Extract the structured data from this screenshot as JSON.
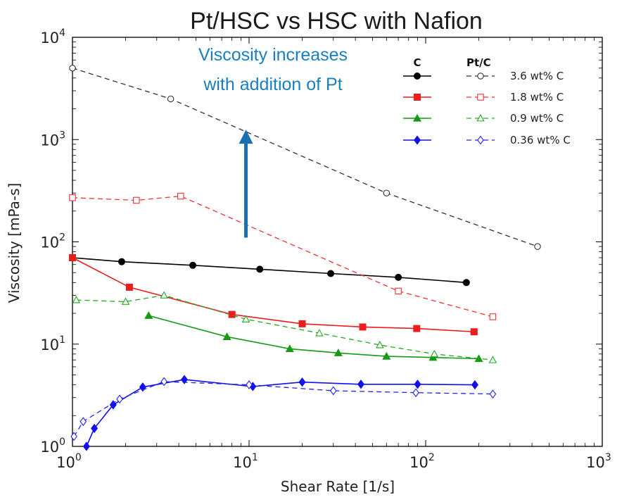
{
  "chart_data": {
    "type": "line",
    "title": "Pt/HSC vs HSC with Nafion",
    "xlabel": "Shear Rate [1/s]",
    "ylabel": "Viscosity [mPa-s]",
    "x_scale": "log",
    "y_scale": "log",
    "xlim": [
      1,
      1000
    ],
    "ylim": [
      1,
      10000
    ],
    "x_ticks": [
      {
        "value": 1,
        "base": "10",
        "exp": "0"
      },
      {
        "value": 10,
        "base": "10",
        "exp": "1"
      },
      {
        "value": 100,
        "base": "10",
        "exp": "2"
      },
      {
        "value": 1000,
        "base": "10",
        "exp": "3"
      }
    ],
    "y_ticks": [
      {
        "value": 1,
        "base": "10",
        "exp": "0"
      },
      {
        "value": 10,
        "base": "10",
        "exp": "1"
      },
      {
        "value": 100,
        "base": "10",
        "exp": "2"
      },
      {
        "value": 1000,
        "base": "10",
        "exp": "3"
      },
      {
        "value": 10000,
        "base": "10",
        "exp": "4"
      }
    ],
    "grid": false,
    "legend": {
      "placement": "top-right",
      "column_titles": [
        "C",
        "Pt/C"
      ],
      "labels": [
        "3.6 wt% C",
        "1.8 wt% C",
        "0.9 wt% C",
        "0.36 wt% C"
      ]
    },
    "series": [
      {
        "group": "C",
        "label_index": 0,
        "color": "#000000",
        "marker": "circle",
        "filled": true,
        "dashed": false,
        "x": [
          1.0,
          1.9,
          4.8,
          11.5,
          29,
          70,
          170
        ],
        "y": [
          70,
          64,
          59,
          54,
          49,
          45,
          40
        ]
      },
      {
        "group": "C",
        "label_index": 1,
        "color": "#ee1c1c",
        "marker": "square",
        "filled": true,
        "dashed": false,
        "x": [
          1.0,
          2.1,
          8,
          20,
          44,
          89,
          188
        ],
        "y": [
          70,
          36,
          19.5,
          15.8,
          14.7,
          14.2,
          13.2
        ]
      },
      {
        "group": "C",
        "label_index": 2,
        "color": "#159a15",
        "marker": "triangle",
        "filled": true,
        "dashed": false,
        "x": [
          2.7,
          7.5,
          17,
          32,
          60,
          110,
          200
        ],
        "y": [
          19,
          11.8,
          9,
          8.2,
          7.6,
          7.4,
          7.2
        ]
      },
      {
        "group": "C",
        "label_index": 3,
        "color": "#1010ee",
        "marker": "diamond",
        "filled": true,
        "dashed": false,
        "x": [
          1.2,
          1.33,
          1.7,
          2.5,
          4.3,
          10.5,
          20,
          43,
          90,
          190
        ],
        "y": [
          1,
          1.5,
          2.55,
          3.8,
          4.5,
          3.85,
          4.25,
          4.05,
          4.05,
          4.0
        ]
      },
      {
        "group": "Pt/C",
        "label_index": 0,
        "color": "#333333",
        "marker": "circle",
        "filled": false,
        "dashed": true,
        "x": [
          1.0,
          3.6,
          60,
          430
        ],
        "y": [
          5000,
          2500,
          300,
          90
        ]
      },
      {
        "group": "Pt/C",
        "label_index": 1,
        "color": "#ee3333",
        "marker": "square",
        "filled": false,
        "dashed": true,
        "x": [
          1.0,
          2.3,
          4.1,
          70,
          240
        ],
        "y": [
          270,
          255,
          280,
          33,
          18.5
        ]
      },
      {
        "group": "Pt/C",
        "label_index": 2,
        "color": "#22aa22",
        "marker": "triangle",
        "filled": false,
        "dashed": true,
        "x": [
          1.05,
          2.0,
          3.3,
          9.6,
          25,
          55,
          112,
          240
        ],
        "y": [
          27,
          26,
          30,
          17.5,
          12.8,
          9.8,
          8,
          7
        ]
      },
      {
        "group": "Pt/C",
        "label_index": 3,
        "color": "#2222ee",
        "marker": "diamond",
        "filled": false,
        "dashed": true,
        "x": [
          1.02,
          1.15,
          1.85,
          3.3,
          10,
          30,
          88,
          240
        ],
        "y": [
          1.25,
          1.75,
          2.9,
          4.3,
          4.0,
          3.5,
          3.35,
          3.25
        ]
      }
    ],
    "annotations": [
      {
        "text_lines": [
          "Viscosity increases",
          "with addition of Pt"
        ],
        "color": "#1a7fc0"
      },
      {
        "type": "arrow",
        "color": "#1a6fb0",
        "x": 9.6,
        "y_from": 110,
        "y_to": 1250
      }
    ]
  }
}
